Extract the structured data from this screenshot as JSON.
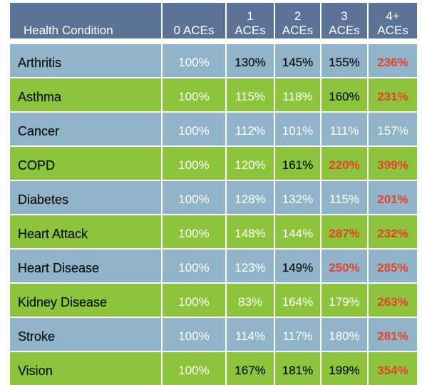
{
  "chart_data": {
    "type": "table",
    "columns": [
      {
        "key": "condition",
        "label": "Health Condition"
      },
      {
        "key": "aces0",
        "label": "0 ACEs"
      },
      {
        "key": "aces1",
        "label": "1\nACEs"
      },
      {
        "key": "aces2",
        "label": "2\nACEs"
      },
      {
        "key": "aces3",
        "label": "3\nACEs"
      },
      {
        "key": "aces4",
        "label": "4+\nACEs"
      }
    ],
    "rows": [
      {
        "condition": "Arthritis",
        "values": [
          "100%",
          "130%",
          "145%",
          "155%",
          "236%"
        ],
        "styles": [
          "white",
          "dark",
          "dark",
          "dark",
          "red"
        ]
      },
      {
        "condition": "Asthma",
        "values": [
          "100%",
          "115%",
          "118%",
          "160%",
          "231%"
        ],
        "styles": [
          "white",
          "white",
          "white",
          "dark",
          "red"
        ]
      },
      {
        "condition": "Cancer",
        "values": [
          "100%",
          "112%",
          "101%",
          "111%",
          "157%"
        ],
        "styles": [
          "white",
          "white",
          "white",
          "white",
          "white"
        ]
      },
      {
        "condition": "COPD",
        "values": [
          "100%",
          "120%",
          "161%",
          "220%",
          "399%"
        ],
        "styles": [
          "white",
          "white",
          "dark",
          "red",
          "red"
        ]
      },
      {
        "condition": "Diabetes",
        "values": [
          "100%",
          "128%",
          "132%",
          "115%",
          "201%"
        ],
        "styles": [
          "white",
          "white",
          "white",
          "white",
          "red"
        ]
      },
      {
        "condition": "Heart Attack",
        "values": [
          "100%",
          "148%",
          "144%",
          "287%",
          "232%"
        ],
        "styles": [
          "white",
          "white",
          "white",
          "red",
          "red"
        ]
      },
      {
        "condition": "Heart Disease",
        "values": [
          "100%",
          "123%",
          "149%",
          "250%",
          "285%"
        ],
        "styles": [
          "white",
          "white",
          "dark",
          "red",
          "red"
        ]
      },
      {
        "condition": "Kidney Disease",
        "values": [
          "100%",
          "83%",
          "164%",
          "179%",
          "263%"
        ],
        "styles": [
          "white",
          "white",
          "white",
          "white",
          "red"
        ]
      },
      {
        "condition": "Stroke",
        "values": [
          "100%",
          "114%",
          "117%",
          "180%",
          "281%"
        ],
        "styles": [
          "white",
          "white",
          "white",
          "white",
          "red"
        ]
      },
      {
        "condition": "Vision",
        "values": [
          "100%",
          "167%",
          "181%",
          "199%",
          "354%"
        ],
        "styles": [
          "white",
          "dark",
          "dark",
          "dark",
          "red"
        ]
      }
    ],
    "row_colors": [
      "#90b4c8",
      "#8cc43c"
    ],
    "header_color": "#5a7396",
    "highlight_color": "#e8412c"
  }
}
